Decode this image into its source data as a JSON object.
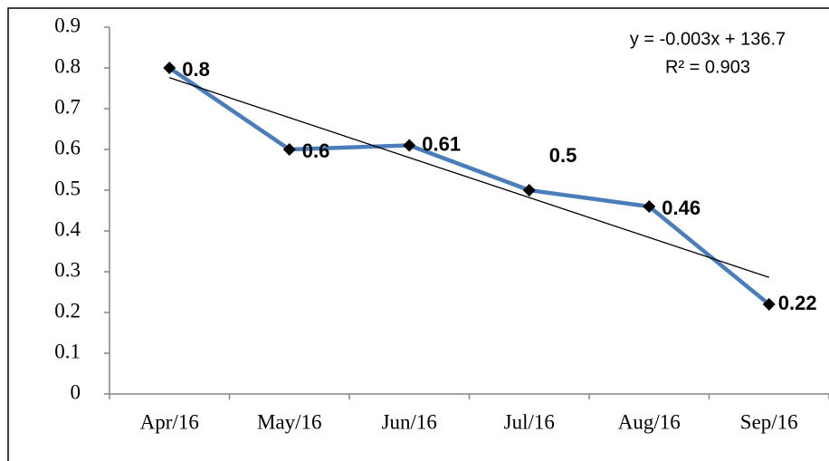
{
  "chart_data": {
    "type": "line",
    "categories": [
      "Apr/16",
      "May/16",
      "Jun/16",
      "Jul/16",
      "Aug/16",
      "Sep/16"
    ],
    "series": [
      {
        "color": "#4a7ebb",
        "values": [
          0.8,
          0.6,
          0.61,
          0.5,
          0.46,
          0.22
        ]
      }
    ],
    "ylim": [
      0,
      0.9
    ],
    "yticks": [
      0,
      0.1,
      0.2,
      0.3,
      0.4,
      0.5,
      0.6,
      0.7,
      0.8,
      0.9
    ],
    "trendline": {
      "equation": "y = -0.003x + 136.7",
      "r_squared": "R² = 0.903",
      "start": 0.776,
      "end": 0.286,
      "color": "#000000"
    },
    "marker_color": "#000000"
  }
}
